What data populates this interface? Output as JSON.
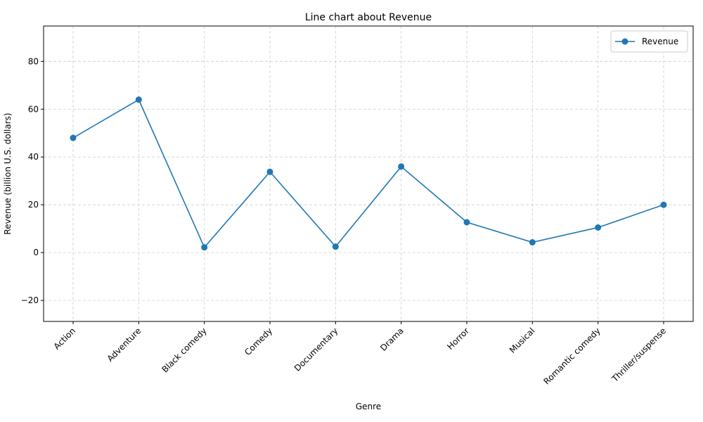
{
  "chart_data": {
    "type": "line",
    "title": "Line chart about Revenue",
    "xlabel": "Genre",
    "ylabel": "Revenue (billion U.S. dollars)",
    "categories": [
      "Action",
      "Adventure",
      "Black comedy",
      "Comedy",
      "Documentary",
      "Drama",
      "Horror",
      "Musical",
      "Romantic comedy",
      "Thriller/suspense"
    ],
    "series": [
      {
        "name": "Revenue",
        "values": [
          48,
          64,
          2.2,
          33.8,
          2.5,
          36,
          12.7,
          4.3,
          10.5,
          20
        ]
      }
    ],
    "ylim": [
      -28.8,
      94.8
    ],
    "yticks": [
      -20,
      0,
      20,
      40,
      60,
      80
    ],
    "grid": true,
    "legend": "top-right",
    "colors": {
      "series": "#1f77b4",
      "grid": "#cccccc"
    }
  }
}
